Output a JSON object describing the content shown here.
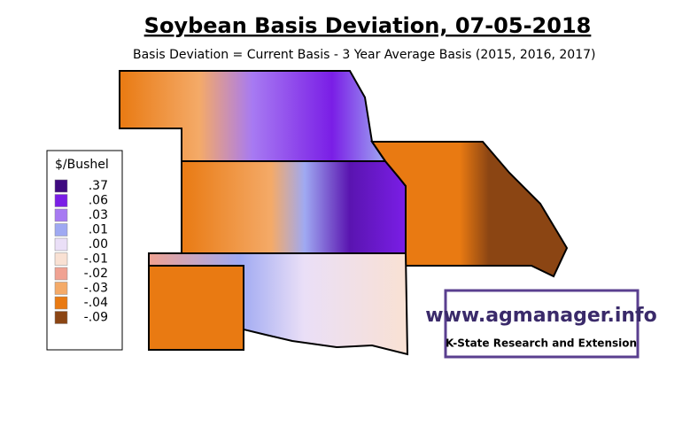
{
  "title": "Soybean Basis Deviation, 07-05-2018",
  "subtitle": "Basis Deviation = Current Basis - 3 Year Average Basis (2015, 2016, 2017)",
  "legend": {
    "title": "$/Bushel",
    "items": [
      {
        "label": ".37",
        "color": "#3f0a80"
      },
      {
        "label": ".06",
        "color": "#7a1ee6"
      },
      {
        "label": ".03",
        "color": "#a77af2"
      },
      {
        "label": ".01",
        "color": "#9fa9f2"
      },
      {
        "label": ".00",
        "color": "#eadff7"
      },
      {
        "label": "-.01",
        "color": "#f9e1d3"
      },
      {
        "label": "-.02",
        "color": "#f0a292"
      },
      {
        "label": "-.03",
        "color": "#f4aa68"
      },
      {
        "label": "-.04",
        "color": "#e97a12"
      },
      {
        "label": "-.09",
        "color": "#8b4513"
      }
    ]
  },
  "logo": {
    "url": "www.agmanager.info",
    "org": "K-State Research and Extension"
  }
}
